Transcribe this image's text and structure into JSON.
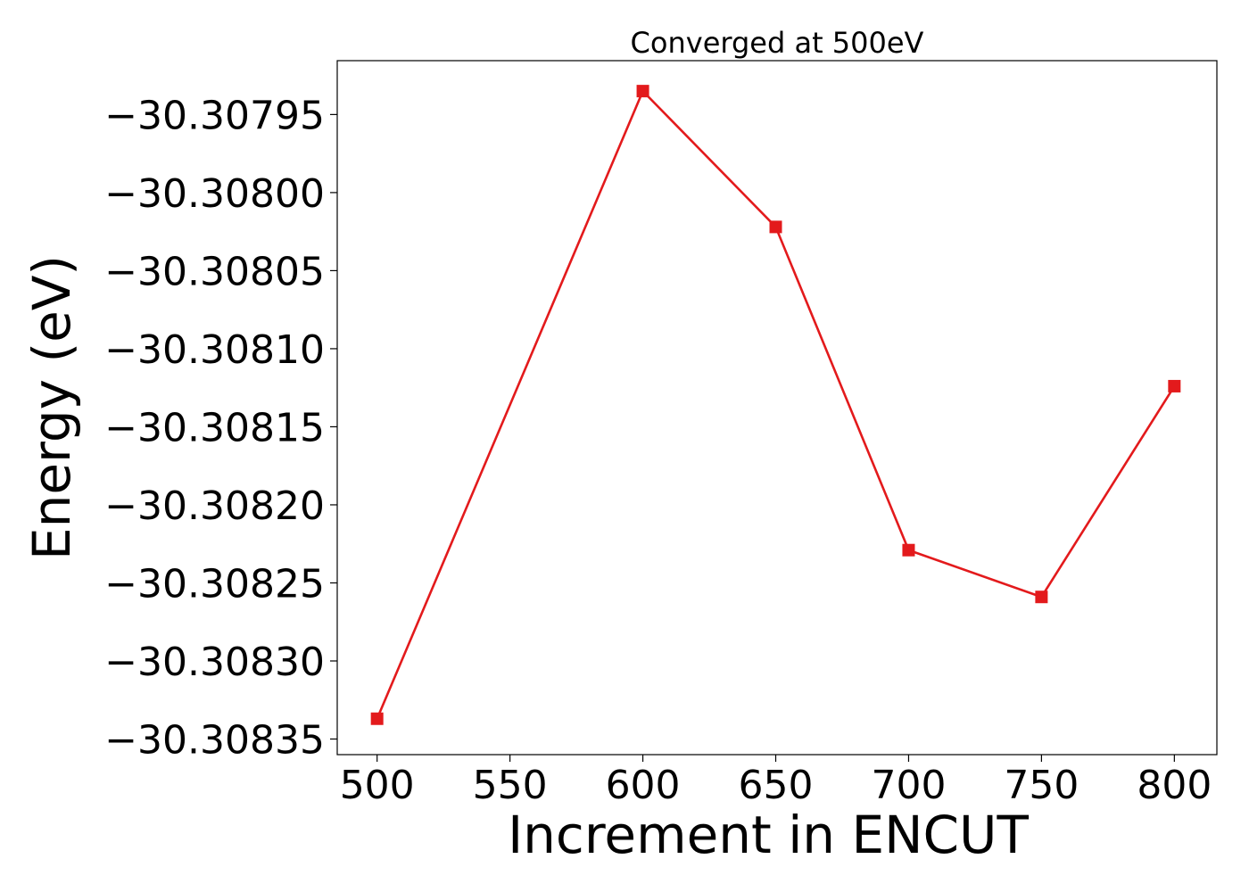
{
  "chart_data": {
    "type": "line",
    "title": "Converged at 500eV",
    "xlabel": "Increment in ENCUT",
    "ylabel": "Energy (eV)",
    "x": [
      500,
      600,
      650,
      700,
      750,
      800
    ],
    "series": [
      {
        "values": [
          -30.308337,
          -30.307935,
          -30.308022,
          -30.308229,
          -30.308259,
          -30.308124
        ],
        "color": "#e31a1c",
        "marker": "square"
      }
    ],
    "xlim": [
      485,
      816
    ],
    "ylim": [
      -30.30836,
      -30.3079155
    ],
    "x_ticks": [
      500,
      550,
      600,
      650,
      700,
      750,
      800
    ],
    "x_tick_labels": [
      "500",
      "550",
      "600",
      "650",
      "700",
      "750",
      "800"
    ],
    "y_ticks": [
      -30.30795,
      -30.308,
      -30.30805,
      -30.3081,
      -30.30815,
      -30.3082,
      -30.30825,
      -30.3083,
      -30.30835
    ],
    "y_tick_labels": [
      "−30.30795",
      "−30.30800",
      "−30.30805",
      "−30.30810",
      "−30.30815",
      "−30.30820",
      "−30.30825",
      "−30.30830",
      "−30.30835"
    ],
    "grid": false,
    "legend": "none"
  }
}
